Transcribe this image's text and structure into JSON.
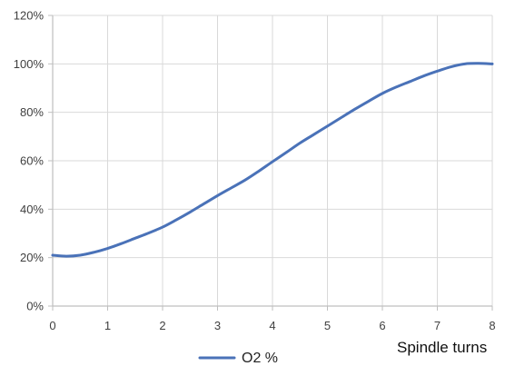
{
  "chart_data": {
    "type": "line",
    "title": "",
    "xlabel": "Spindle turns",
    "ylabel": "",
    "xlim": [
      0,
      8
    ],
    "ylim": [
      0,
      120
    ],
    "x_ticks": [
      0,
      1,
      2,
      3,
      4,
      5,
      6,
      7,
      8
    ],
    "x_tick_labels": [
      "0",
      "1",
      "2",
      "3",
      "4",
      "5",
      "6",
      "7",
      "8"
    ],
    "y_ticks": [
      0,
      20,
      40,
      60,
      80,
      100,
      120
    ],
    "y_tick_labels": [
      "0%",
      "20%",
      "40%",
      "60%",
      "80%",
      "100%",
      "120%"
    ],
    "grid": true,
    "legend_position": "bottom",
    "series": [
      {
        "name": "O2 %",
        "color": "#4a72b8",
        "x": [
          0,
          0.25,
          0.5,
          0.75,
          1,
          1.25,
          1.5,
          1.75,
          2,
          2.25,
          2.5,
          2.75,
          3,
          3.25,
          3.5,
          3.75,
          4,
          4.25,
          4.5,
          4.75,
          5,
          5.25,
          5.5,
          5.75,
          6,
          6.25,
          6.5,
          6.75,
          7,
          7.25,
          7.5,
          7.75,
          8
        ],
        "y": [
          21,
          20.6,
          21,
          22.2,
          23.8,
          25.8,
          28,
          30.2,
          32.6,
          35.6,
          38.8,
          42.2,
          45.6,
          48.8,
          52,
          55.7,
          59.6,
          63.4,
          67.3,
          70.8,
          74.3,
          77.8,
          81.3,
          84.6,
          87.8,
          90.4,
          92.7,
          95,
          97,
          98.8,
          100,
          100.2,
          100
        ]
      }
    ]
  }
}
